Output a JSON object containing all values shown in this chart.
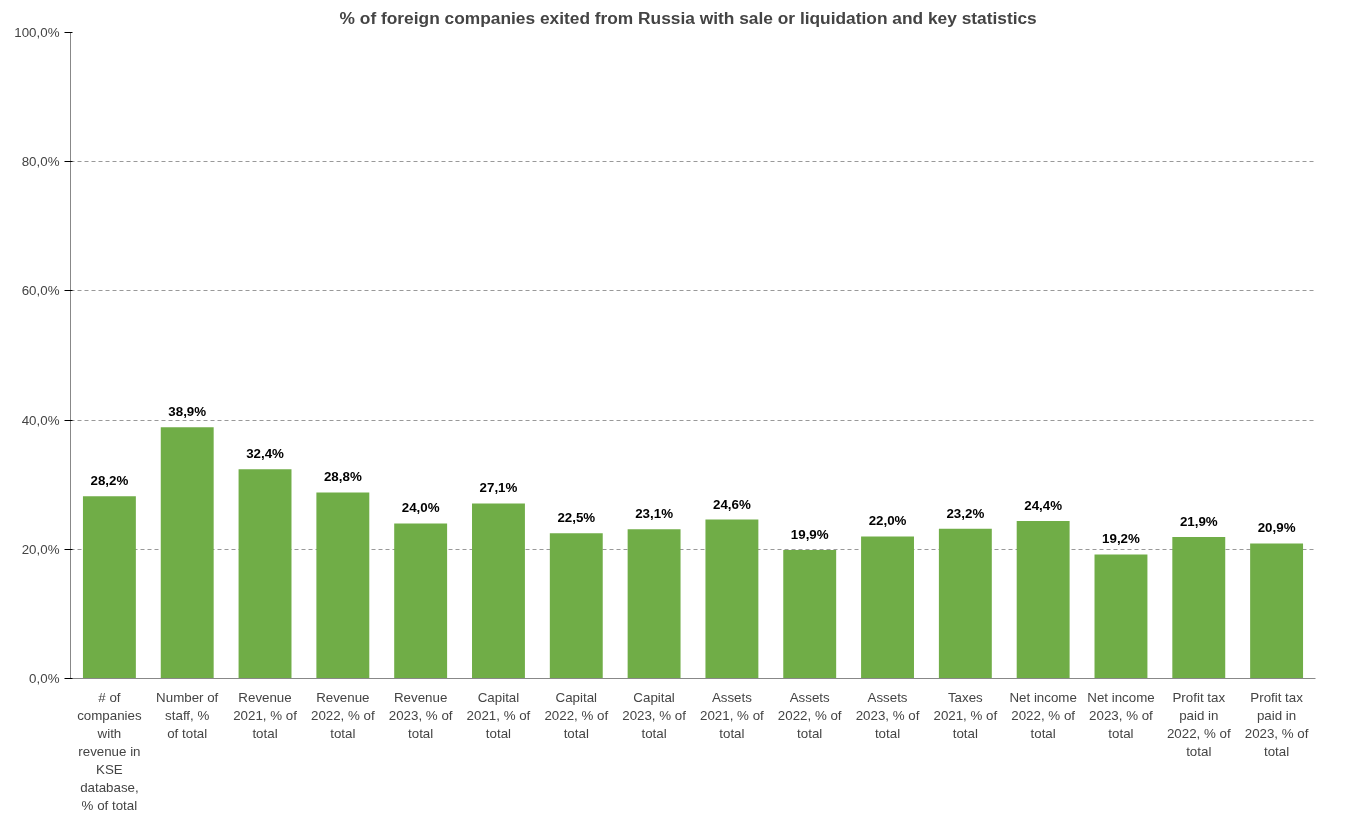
{
  "chart_data": {
    "type": "bar",
    "title": "% of foreign companies  exited from Russia with sale or liquidation  and key statistics",
    "categories": [
      "# of companies with revenue in KSE database, % of total",
      "Number of staff, % of total",
      "Revenue 2021, % of total",
      "Revenue 2022, % of total",
      "Revenue 2023, % of total",
      "Capital 2021, % of total",
      "Capital 2022, % of total",
      "Capital 2023, % of total",
      "Assets 2021, % of total",
      "Assets 2022, % of total",
      "Assets 2023, % of total",
      "Taxes 2021, % of total",
      "Net income 2022, % of total",
      "Net income 2023, % of total",
      "Profit tax paid in 2022, % of total",
      "Profit tax paid in 2023, % of total"
    ],
    "values": [
      28.2,
      38.9,
      32.4,
      28.8,
      24.0,
      27.1,
      22.5,
      23.1,
      24.6,
      19.9,
      22.0,
      23.2,
      24.4,
      19.2,
      21.9,
      20.9
    ],
    "value_labels": [
      "28,2%",
      "38,9%",
      "32,4%",
      "28,8%",
      "24,0%",
      "27,1%",
      "22,5%",
      "23,1%",
      "24,6%",
      "19,9%",
      "22,0%",
      "23,2%",
      "24,4%",
      "19,2%",
      "21,9%",
      "20,9%"
    ],
    "color": "#70ad47",
    "ylim": [
      0,
      100
    ],
    "yticks": [
      {
        "value": 0,
        "label": "0,0%"
      },
      {
        "value": 20,
        "label": "20,0%"
      },
      {
        "value": 40,
        "label": "40,0%"
      },
      {
        "value": 60,
        "label": "60,0%"
      },
      {
        "value": 80,
        "label": "80,0%"
      },
      {
        "value": 100,
        "label": "100,0%"
      }
    ],
    "grid": "y"
  }
}
